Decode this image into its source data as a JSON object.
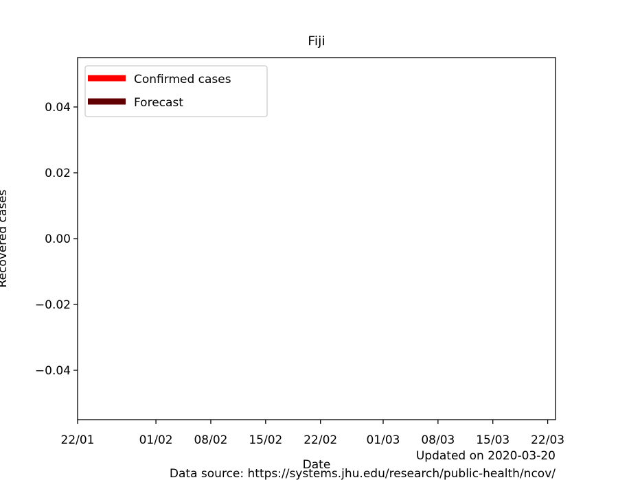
{
  "chart_data": {
    "type": "line",
    "title": "Fiji",
    "xlabel": "Date",
    "ylabel": "Recovered cases",
    "x_ticks": [
      "22/01",
      "01/02",
      "08/02",
      "15/02",
      "22/02",
      "01/03",
      "08/03",
      "15/03",
      "22/03"
    ],
    "x_tick_dates": [
      "2020-01-22",
      "2020-02-01",
      "2020-02-08",
      "2020-02-15",
      "2020-02-22",
      "2020-03-01",
      "2020-03-08",
      "2020-03-15",
      "2020-03-22"
    ],
    "xlim": [
      "2020-01-22",
      "2020-03-23"
    ],
    "y_ticks": [
      "0.04",
      "0.02",
      "0.00",
      "−0.02",
      "−0.04"
    ],
    "y_tick_values": [
      0.04,
      0.02,
      0.0,
      -0.02,
      -0.04
    ],
    "ylim": [
      -0.055,
      0.055
    ],
    "grid": false,
    "legend_position": "top-left",
    "series": [
      {
        "name": "Confirmed cases",
        "color": "#ff0000",
        "x": [],
        "y": []
      },
      {
        "name": "Forecast",
        "color": "#600000",
        "x": [],
        "y": []
      }
    ]
  },
  "footer": {
    "updated": "Updated on 2020-03-20",
    "source": "Data source: https://systems.jhu.edu/research/public-health/ncov/"
  }
}
